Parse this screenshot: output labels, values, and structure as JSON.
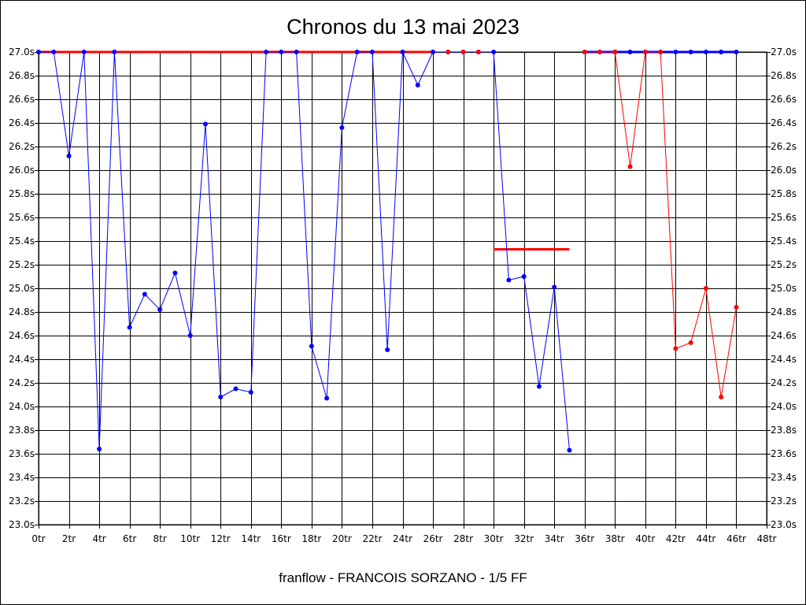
{
  "chart_data": {
    "type": "line",
    "title": "Chronos du 13 mai 2023",
    "footer": "franflow - FRANCOIS SORZANO - 1/5 FF",
    "x_unit": "tr",
    "y_unit": "s",
    "xlim": [
      0,
      48
    ],
    "ylim": [
      23.0,
      27.0
    ],
    "x_ticks": [
      0,
      2,
      4,
      6,
      8,
      10,
      12,
      14,
      16,
      18,
      20,
      22,
      24,
      26,
      28,
      30,
      32,
      34,
      36,
      38,
      40,
      42,
      44,
      46,
      48
    ],
    "x_tick_labels": [
      "0tr",
      "2tr",
      "4tr",
      "6tr",
      "8tr",
      "10tr",
      "12tr",
      "14tr",
      "16tr",
      "18tr",
      "20tr",
      "22tr",
      "24tr",
      "26tr",
      "28tr",
      "30tr",
      "32tr",
      "34tr",
      "36tr",
      "38tr",
      "40tr",
      "42tr",
      "44tr",
      "46tr",
      "48tr"
    ],
    "y_ticks": [
      23.0,
      23.2,
      23.4,
      23.6,
      23.8,
      24.0,
      24.2,
      24.4,
      24.6,
      24.8,
      25.0,
      25.2,
      25.4,
      25.6,
      25.8,
      26.0,
      26.2,
      26.4,
      26.6,
      26.8,
      27.0
    ],
    "y_tick_labels": [
      "23.0s",
      "23.2s",
      "23.4s",
      "23.6s",
      "23.8s",
      "24.0s",
      "24.2s",
      "24.4s",
      "24.6s",
      "24.8s",
      "25.0s",
      "25.2s",
      "25.4s",
      "25.6s",
      "25.8s",
      "26.0s",
      "26.2s",
      "26.4s",
      "26.6s",
      "26.8s",
      "27.0s"
    ],
    "grid": true,
    "series": [
      {
        "color": "#0000ff",
        "x": [
          0,
          1,
          2,
          3,
          4,
          5,
          6,
          7,
          8,
          9,
          10,
          11,
          12,
          13,
          14,
          15,
          16,
          17,
          18,
          19,
          20,
          21,
          22,
          23,
          24,
          25,
          26,
          27,
          28,
          29,
          30,
          31,
          32,
          33,
          34,
          35
        ],
        "y": [
          27.0,
          27.0,
          26.12,
          27.0,
          23.64,
          27.0,
          24.67,
          24.95,
          24.82,
          25.13,
          24.6,
          26.39,
          24.08,
          24.15,
          24.12,
          27.0,
          27.0,
          27.0,
          24.51,
          24.07,
          26.36,
          27.0,
          27.0,
          24.48,
          27.0,
          26.72,
          27.0,
          27.0,
          27.0,
          27.0,
          27.0,
          25.07,
          25.1,
          24.17,
          25.01,
          23.63
        ]
      },
      {
        "color": "#0000ff",
        "x": [
          36,
          37,
          38,
          39,
          40,
          41,
          42,
          43,
          44,
          45,
          46
        ],
        "y": [
          27.0,
          27.0,
          27.0,
          27.0,
          27.0,
          27.0,
          27.0,
          27.0,
          27.0,
          27.0,
          27.0
        ]
      },
      {
        "color": "#ff0000",
        "x": [
          36,
          37,
          38,
          39,
          40,
          41,
          42,
          43,
          44,
          45,
          46
        ],
        "y": [
          27.0,
          27.0,
          27.0,
          26.03,
          27.0,
          27.0,
          24.49,
          24.54,
          25.0,
          24.08,
          24.84
        ]
      }
    ],
    "extra_points": {
      "color": "#ff0000",
      "x": [
        27,
        28,
        29
      ],
      "y": [
        27.0,
        27.0,
        27.0
      ]
    },
    "hlines": [
      {
        "color": "#ff0000",
        "y": 27.0,
        "x_from": 0,
        "x_to": 26
      },
      {
        "color": "#ff0000",
        "y": 25.33,
        "x_from": 30,
        "x_to": 35
      }
    ]
  }
}
